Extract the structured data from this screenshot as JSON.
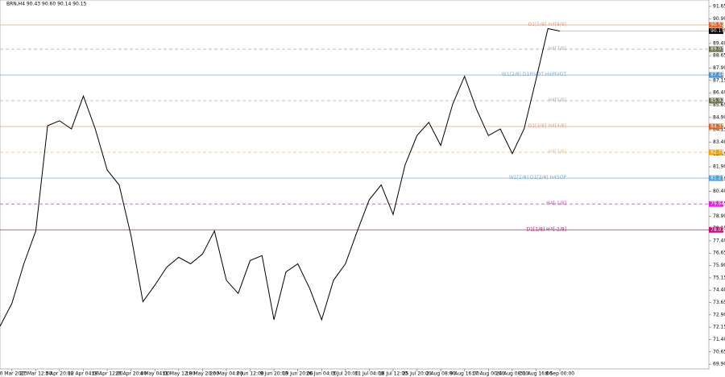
{
  "chart_data": {
    "type": "line",
    "title": "BRN,H4 90.43 90.60 90.14 90.15",
    "categories": [
      null,
      "20 Mar 2023",
      null,
      "27 Mar 12:00",
      null,
      "3 Apr 20:00",
      null,
      "12 Apr 04:00",
      null,
      "19 Apr 12:00",
      null,
      "26 Apr 20:00",
      null,
      "4 May 04:00",
      null,
      "11 May 12:00",
      null,
      "18 May 20:00",
      null,
      "26 May 04:00",
      null,
      "2 Jun 12:00",
      null,
      "9 Jun 20:00",
      null,
      "19 Jun 20:00",
      null,
      "26 Jun 04:00",
      null,
      "3 Jul 20:00",
      null,
      "11 Jul 04:00",
      null,
      "18 Jul 12:00",
      null,
      "25 Jul 20:00",
      null,
      "2 Aug 08:00",
      null,
      "9 Aug 16:00",
      null,
      "17 Aug 00:00",
      null,
      "24 Aug 08:00",
      null,
      "31 Aug 16:00",
      null,
      "8 Sep 00:00"
    ],
    "series": [
      {
        "name": "BRN,H4",
        "color": "#000000",
        "values": [
          72.2,
          73.6,
          76.0,
          78.0,
          84.4,
          84.7,
          84.2,
          86.2,
          84.2,
          81.7,
          80.8,
          77.7,
          73.7,
          74.7,
          75.8,
          76.4,
          76.0,
          76.6,
          78.0,
          75.0,
          74.2,
          76.2,
          76.5,
          72.6,
          75.5,
          76.0,
          74.5,
          72.6,
          75.0,
          76.0,
          78.0,
          79.9,
          80.8,
          79.0,
          82.0,
          83.8,
          84.6,
          83.2,
          85.7,
          87.4,
          85.4,
          83.8,
          84.2,
          82.7,
          84.2,
          87.2,
          90.3,
          90.15
        ]
      }
    ],
    "ylim": [
      69.61,
      92.04
    ],
    "yticks": [
      91.65,
      {
        "value": 90.9,
        "label": "90.90"
      },
      90.15,
      {
        "value": 89.4,
        "label": "89.40"
      },
      88.65,
      {
        "value": 87.9,
        "label": "87.90"
      },
      87.15,
      {
        "value": 86.4,
        "label": "86.40"
      },
      85.65,
      {
        "value": 84.9,
        "label": "84.90"
      },
      84.15,
      {
        "value": 83.4,
        "label": "83.40"
      },
      82.65,
      {
        "value": 81.9,
        "label": "81.90"
      },
      81.15,
      {
        "value": 80.4,
        "label": "80.40"
      },
      79.65,
      {
        "value": 78.9,
        "label": "78.90"
      },
      78.15,
      {
        "value": 77.4,
        "label": "77.40"
      },
      76.65,
      {
        "value": 75.9,
        "label": "75.90"
      },
      75.15,
      {
        "value": 74.4,
        "label": "74.40"
      },
      73.65,
      {
        "value": 72.9,
        "label": "72.90"
      },
      72.15,
      {
        "value": 71.4,
        "label": "71.40"
      },
      70.65,
      {
        "value": 69.9,
        "label": "69.90"
      }
    ],
    "levels": [
      {
        "label": "D1[5/8] H4[8/8]",
        "value": 90.52,
        "color": "#f0a070",
        "box": "#e86020",
        "dashed": false
      },
      {
        "label": "H4[7/8]",
        "value": 89.05,
        "color": "#b0b0b0",
        "box": "#667040",
        "dashed": true
      },
      {
        "label": "W1[2/8] D1PIVOT H4PIVOT",
        "value": 87.48,
        "color": "#70b0f0",
        "box": "#4a90d0",
        "dashed": false
      },
      {
        "label": "H4[5/8]",
        "value": 85.92,
        "color": "#b0b0b0",
        "box": "#667040",
        "dashed": true
      },
      {
        "label": "D1[3/8] H4[4/8]",
        "value": 84.35,
        "color": "#f0a070",
        "box": "#e06020",
        "dashed": false
      },
      {
        "label": "H4[3/8]",
        "value": 82.78,
        "color": "#f5c080",
        "box": "#f0a000",
        "dashed": true
      },
      {
        "label": "W1[1/8] D1[2/8] H4SOP",
        "value": 81.21,
        "color": "#70b0f0",
        "box": "#4aa0e0",
        "dashed": false
      },
      {
        "label": "H4[-1/8]",
        "value": 79.64,
        "color": "#e040e0",
        "box": "#e020e0",
        "dashed": true
      },
      {
        "label": "D1[1/8] H4[-2/8]",
        "value": 78.07,
        "color": "#c0207a",
        "box": "#c0107a",
        "dashed": false
      }
    ],
    "last_price": 90.15
  }
}
